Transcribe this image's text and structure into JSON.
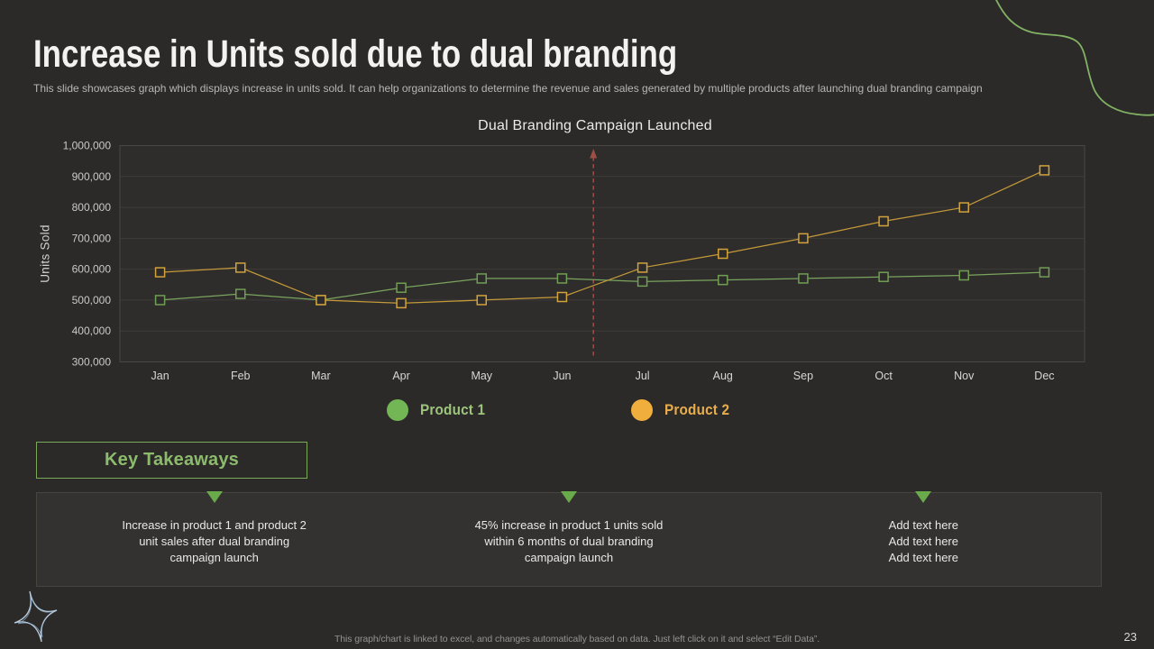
{
  "slide": {
    "title": "Increase in Units sold due to dual branding",
    "subtitle": "This slide showcases graph which displays increase in units sold. It can help organizations to determine the revenue and sales generated by multiple products after launching dual branding campaign",
    "footer_note": "This graph/chart is linked to excel, and changes automatically based on data. Just left click on it and select “Edit Data”.",
    "page_number": "23"
  },
  "chart_data": {
    "type": "line",
    "title": "Dual Branding Campaign Launched",
    "xlabel": "",
    "ylabel": "Units Sold",
    "categories": [
      "Jan",
      "Feb",
      "Mar",
      "Apr",
      "May",
      "Jun",
      "Jul",
      "Aug",
      "Sep",
      "Oct",
      "Nov",
      "Dec"
    ],
    "series": [
      {
        "name": "Product 1",
        "values": [
          500000,
          520000,
          500000,
          540000,
          570000,
          570000,
          560000,
          565000,
          570000,
          575000,
          580000,
          590000
        ],
        "line_color": "#79a45e",
        "marker_color": "#6f9e54",
        "legend_color": "#72b656",
        "label_color": "#9cc47c"
      },
      {
        "name": "Product 2",
        "values": [
          590000,
          605000,
          500000,
          490000,
          500000,
          510000,
          605000,
          650000,
          700000,
          755000,
          800000,
          920000
        ],
        "line_color": "#c49a39",
        "marker_color": "#d2a23c",
        "legend_color": "#f0ae3c",
        "label_color": "#e7ad4d"
      }
    ],
    "ylim": [
      300000,
      1000000
    ],
    "ytick_step": 100000,
    "grid": true,
    "legend_position": "bottom",
    "annotation": {
      "type": "vertical-dashed-arrow",
      "x_index": 5.39,
      "color": "#9d4f45"
    }
  },
  "key_takeaways": {
    "heading": "Key Takeaways",
    "items": [
      {
        "lines": [
          "Increase in product 1 and product 2",
          "unit sales after dual branding",
          "campaign launch"
        ]
      },
      {
        "lines": [
          "45% increase in product 1 units sold",
          "within 6 months of dual branding",
          "campaign launch"
        ]
      },
      {
        "lines": [
          "Add text here",
          "Add text here",
          "Add text here"
        ]
      }
    ]
  }
}
